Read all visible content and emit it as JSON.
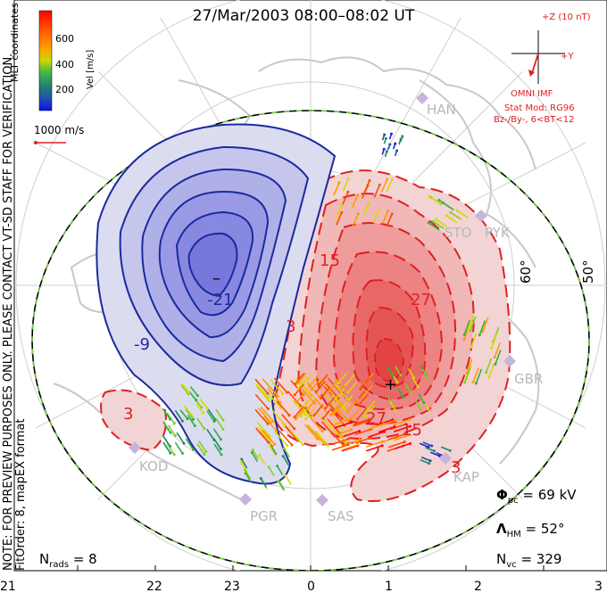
{
  "title": "27/Mar/2003 08:00–08:02 UT",
  "colorbar": {
    "label": "Vel [m/s]",
    "ticks": [
      "600",
      "400",
      "200"
    ],
    "colors": [
      "#ff0000",
      "#ff4a00",
      "#ff9a00",
      "#d8d800",
      "#80d020",
      "#30b040",
      "#208868",
      "#2050a0",
      "#2020e0"
    ]
  },
  "coords_label": "MLT coordinates",
  "preview_note": "NOTE: FOR PREVIEW PURPOSES ONLY. PLEASE CONTACT VT-SD STAFF FOR VERIFICATION.",
  "fit_label": "FitOrder: 8, mapEX format",
  "scale_vector": "1000 m/s",
  "imf": {
    "bz_label": "+Z (10 nT)",
    "by_label": "+Y",
    "source": "OMNI IMF",
    "stat_mod": "Stat Mod: RG96",
    "bin": "Bz-/By-, 6<BT<12"
  },
  "latitude_labels": [
    "60°",
    "50°"
  ],
  "stations": [
    "HAN",
    "STO",
    "PYK",
    "GBR",
    "KAP",
    "SAS",
    "PGR",
    "KOD"
  ],
  "contour_labels": [
    "-21",
    "-9",
    "3",
    "15",
    "27",
    "27",
    "15",
    "3",
    "3"
  ],
  "potential_markers": {
    "min": "–",
    "max": "+"
  },
  "stats": {
    "n_rads_label": "N",
    "n_rads_sub": "rads",
    "n_rads_value": "= 8",
    "phi_label": "Φ",
    "phi_sub": "pc",
    "phi_value": "= 69 kV",
    "lambda_label": "Λ",
    "lambda_sub": "HM",
    "lambda_value": "= 52°",
    "nvc_label": "N",
    "nvc_sub": "vc",
    "nvc_value": "= 329"
  },
  "mlt_ticks": [
    "21",
    "22",
    "23",
    "0",
    "1",
    "2",
    "3"
  ]
}
